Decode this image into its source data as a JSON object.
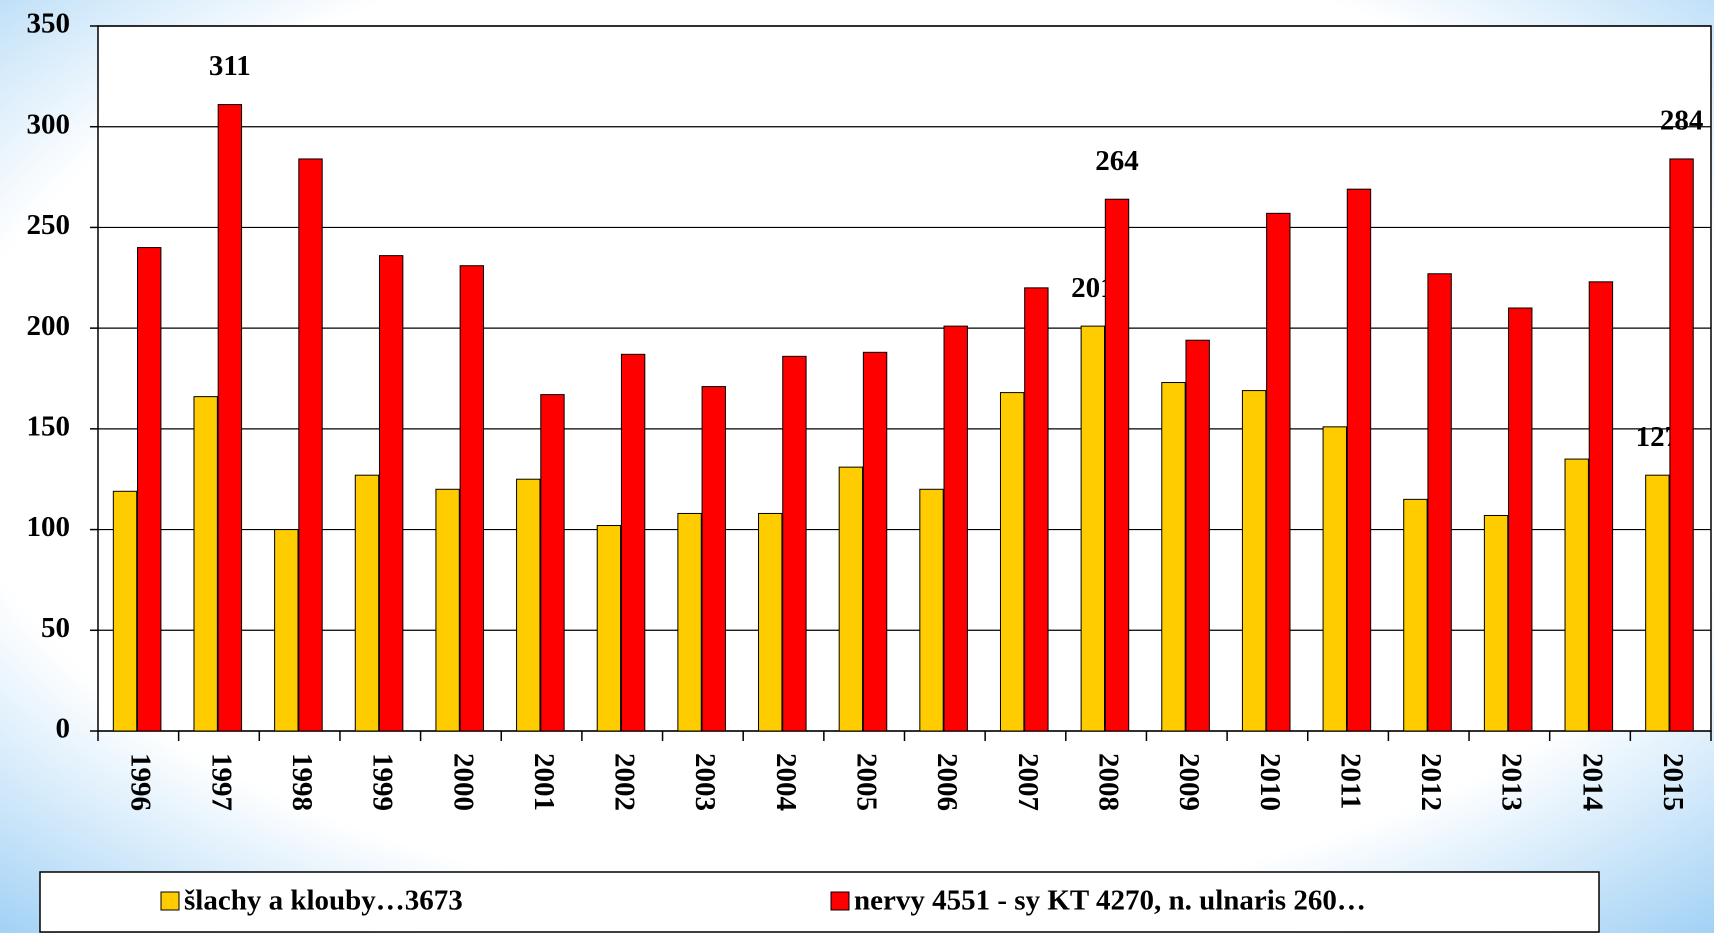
{
  "chart_data": {
    "type": "bar",
    "categories": [
      "1996",
      "1997",
      "1998",
      "1999",
      "2000",
      "2001",
      "2002",
      "2003",
      "2004",
      "2005",
      "2006",
      "2007",
      "2008",
      "2009",
      "2010",
      "2011",
      "2012",
      "2013",
      "2014",
      "2015"
    ],
    "series": [
      {
        "name": "šlachy a klouby…3673",
        "color": "#ffcc00",
        "values": [
          119,
          166,
          100,
          127,
          120,
          125,
          102,
          108,
          108,
          131,
          120,
          168,
          201,
          173,
          169,
          151,
          115,
          107,
          135,
          127
        ],
        "value_labels": [
          null,
          null,
          null,
          null,
          null,
          null,
          null,
          null,
          null,
          null,
          null,
          null,
          "201",
          null,
          null,
          null,
          null,
          null,
          null,
          "127"
        ]
      },
      {
        "name": "nervy 4551 - sy KT 4270, n. ulnaris 260…",
        "color": "#ff0000",
        "values": [
          240,
          311,
          284,
          236,
          231,
          167,
          187,
          171,
          186,
          188,
          201,
          220,
          264,
          194,
          257,
          269,
          227,
          210,
          223,
          284
        ],
        "value_labels": [
          null,
          "311",
          null,
          null,
          null,
          null,
          null,
          null,
          null,
          null,
          null,
          null,
          "264",
          null,
          null,
          null,
          null,
          null,
          null,
          "284"
        ]
      }
    ],
    "annotation": "4",
    "ylim": [
      0,
      350
    ],
    "yticks": [
      0,
      50,
      100,
      150,
      200,
      250,
      300,
      350
    ],
    "grid": true
  }
}
